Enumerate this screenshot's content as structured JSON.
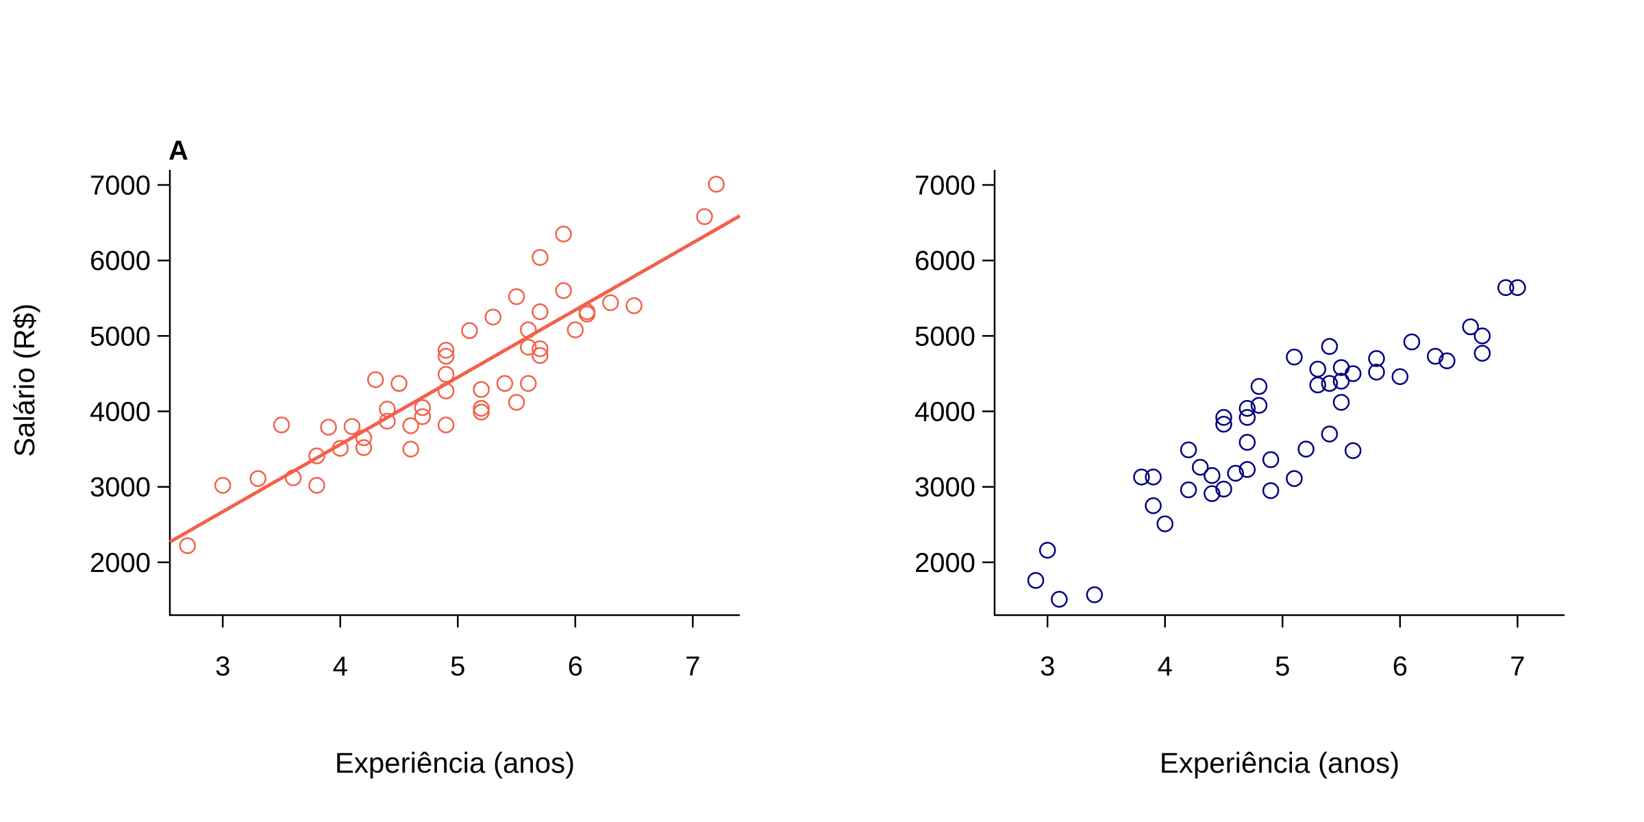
{
  "figure": {
    "panels": [
      {
        "tag": "A",
        "xlabel": "Experiência (anos)",
        "ylabel": "Salário (R$)"
      },
      {
        "tag": "",
        "xlabel": "Experiência (anos)",
        "ylabel": ""
      }
    ]
  },
  "chart_data": [
    {
      "type": "scatter",
      "title": "",
      "panel_label": "A",
      "xlabel": "Experiência (anos)",
      "ylabel": "Salário (R$)",
      "xlim": [
        2.55,
        7.4
      ],
      "ylim": [
        1300,
        7200
      ],
      "xticks": [
        3,
        4,
        5,
        6,
        7
      ],
      "yticks": [
        2000,
        3000,
        4000,
        5000,
        6000,
        7000
      ],
      "grid": false,
      "legend": "none",
      "marker": "open-circle",
      "color": "#F4604A",
      "series": [
        {
          "points": [
            [
              2.7,
              2220
            ],
            [
              3.0,
              3020
            ],
            [
              3.3,
              3110
            ],
            [
              3.5,
              3820
            ],
            [
              3.6,
              3120
            ],
            [
              3.8,
              3410
            ],
            [
              3.8,
              3020
            ],
            [
              3.9,
              3790
            ],
            [
              4.0,
              3510
            ],
            [
              4.1,
              3800
            ],
            [
              4.2,
              3650
            ],
            [
              4.2,
              3520
            ],
            [
              4.3,
              4420
            ],
            [
              4.4,
              4030
            ],
            [
              4.4,
              3870
            ],
            [
              4.5,
              4370
            ],
            [
              4.6,
              3810
            ],
            [
              4.6,
              3500
            ],
            [
              4.7,
              4050
            ],
            [
              4.7,
              3930
            ],
            [
              4.9,
              4810
            ],
            [
              4.9,
              4730
            ],
            [
              4.9,
              4490
            ],
            [
              4.9,
              4270
            ],
            [
              4.9,
              3820
            ],
            [
              5.1,
              5070
            ],
            [
              5.2,
              4290
            ],
            [
              5.2,
              4040
            ],
            [
              5.2,
              3990
            ],
            [
              5.3,
              5250
            ],
            [
              5.4,
              4370
            ],
            [
              5.5,
              5520
            ],
            [
              5.5,
              4120
            ],
            [
              5.6,
              5080
            ],
            [
              5.6,
              4850
            ],
            [
              5.6,
              4370
            ],
            [
              5.7,
              6040
            ],
            [
              5.7,
              5320
            ],
            [
              5.7,
              4830
            ],
            [
              5.7,
              4740
            ],
            [
              5.9,
              6350
            ],
            [
              5.9,
              5600
            ],
            [
              6.0,
              5080
            ],
            [
              6.1,
              5320
            ],
            [
              6.1,
              5290
            ],
            [
              6.3,
              5440
            ],
            [
              6.5,
              5400
            ],
            [
              7.1,
              6580
            ],
            [
              7.2,
              7010
            ]
          ]
        }
      ],
      "regression_line": {
        "from": [
          2.55,
          2270
        ],
        "to": [
          7.4,
          6590
        ],
        "color": "#F4604A"
      }
    },
    {
      "type": "scatter",
      "title": "",
      "xlabel": "Experiência (anos)",
      "ylabel": "",
      "xlim": [
        2.55,
        7.4
      ],
      "ylim": [
        1300,
        7200
      ],
      "xticks": [
        3,
        4,
        5,
        6,
        7
      ],
      "yticks": [
        2000,
        3000,
        4000,
        5000,
        6000,
        7000
      ],
      "grid": false,
      "legend": "none",
      "marker": "open-circle",
      "color": "#000080",
      "series": [
        {
          "points": [
            [
              2.9,
              1760
            ],
            [
              3.0,
              2160
            ],
            [
              3.1,
              1510
            ],
            [
              3.4,
              1570
            ],
            [
              3.8,
              3130
            ],
            [
              3.9,
              3130
            ],
            [
              3.9,
              2750
            ],
            [
              4.0,
              2510
            ],
            [
              4.2,
              3490
            ],
            [
              4.2,
              2960
            ],
            [
              4.3,
              3260
            ],
            [
              4.4,
              3150
            ],
            [
              4.4,
              2910
            ],
            [
              4.5,
              3920
            ],
            [
              4.5,
              3830
            ],
            [
              4.5,
              2970
            ],
            [
              4.6,
              3180
            ],
            [
              4.7,
              4040
            ],
            [
              4.7,
              3920
            ],
            [
              4.7,
              3590
            ],
            [
              4.7,
              3230
            ],
            [
              4.8,
              4330
            ],
            [
              4.8,
              4080
            ],
            [
              4.9,
              3360
            ],
            [
              4.9,
              2950
            ],
            [
              5.1,
              4720
            ],
            [
              5.1,
              3110
            ],
            [
              5.2,
              3500
            ],
            [
              5.3,
              4560
            ],
            [
              5.3,
              4350
            ],
            [
              5.4,
              4860
            ],
            [
              5.4,
              4370
            ],
            [
              5.4,
              3700
            ],
            [
              5.5,
              4580
            ],
            [
              5.5,
              4400
            ],
            [
              5.5,
              4120
            ],
            [
              5.6,
              4500
            ],
            [
              5.6,
              3480
            ],
            [
              5.8,
              4700
            ],
            [
              5.8,
              4520
            ],
            [
              6.0,
              4460
            ],
            [
              6.1,
              4920
            ],
            [
              6.3,
              4730
            ],
            [
              6.4,
              4670
            ],
            [
              6.6,
              5120
            ],
            [
              6.7,
              5000
            ],
            [
              6.7,
              4770
            ],
            [
              6.9,
              5640
            ],
            [
              7.0,
              5640
            ]
          ]
        }
      ]
    }
  ]
}
